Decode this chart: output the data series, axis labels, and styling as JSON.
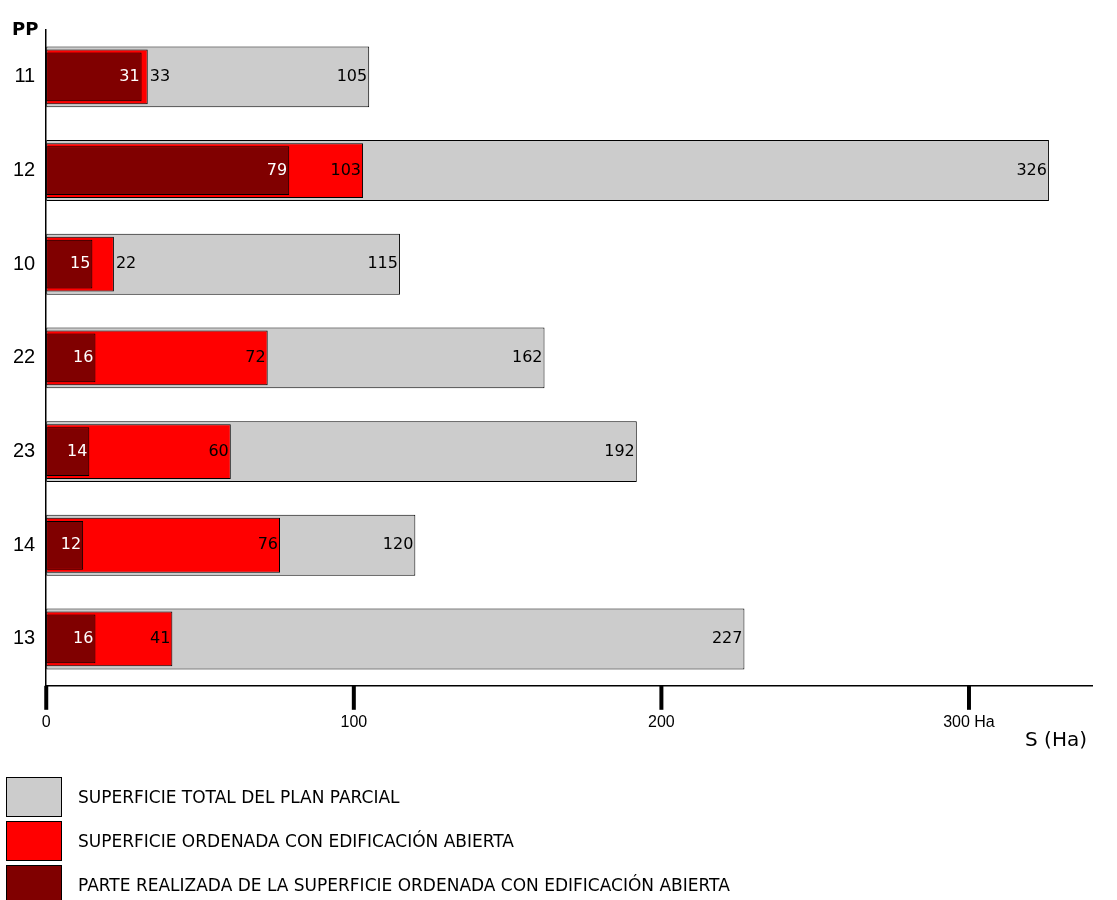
{
  "chart_data": {
    "type": "bar",
    "orientation": "horizontal",
    "xlabel": "S (Ha)",
    "ylabel": "PP",
    "categories": [
      "11",
      "12",
      "10",
      "22",
      "23",
      "14",
      "13"
    ],
    "series": [
      {
        "name": "SUPERFICIE TOTAL DEL PLAN PARCIAL",
        "color": "#cccccc",
        "values": [
          105,
          326,
          115,
          162,
          192,
          120,
          227
        ]
      },
      {
        "name": "SUPERFICIE ORDENADA CON EDIFICACIÓN ABIERTA",
        "color": "#ff0000",
        "values": [
          33,
          103,
          22,
          72,
          60,
          76,
          41
        ]
      },
      {
        "name": "PARTE REALIZADA DE LA SUPERFICIE ORDENADA CON EDIFICACIÓN ABIERTA",
        "color": "#800000",
        "values": [
          31,
          79,
          15,
          16,
          14,
          12,
          16
        ]
      }
    ],
    "xlim": [
      0,
      340
    ],
    "xticks": [
      0,
      100,
      200,
      {
        "value": 300,
        "label": "300 Ha"
      }
    ],
    "grid": false,
    "legend": "bottom",
    "data_labels": true
  }
}
